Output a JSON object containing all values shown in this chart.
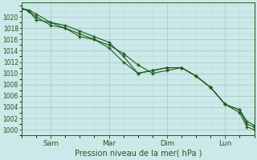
{
  "title": "Pression niveau de la mer( hPa )",
  "bg_color": "#cce8e8",
  "grid_major_color": "#aacccc",
  "grid_minor_color": "#bbdddd",
  "line_color": "#1a5c1a",
  "ylim": [
    999,
    1022.5
  ],
  "yticks": [
    1000,
    1002,
    1004,
    1006,
    1008,
    1010,
    1012,
    1014,
    1016,
    1018,
    1020
  ],
  "xtick_labels": [
    "Sam",
    "Mar",
    "Dim",
    "Lun"
  ],
  "xtick_positions": [
    1,
    3,
    5,
    7
  ],
  "xlim": [
    0,
    8
  ],
  "line1_x": [
    0.0,
    0.25,
    0.5,
    1.0,
    1.5,
    2.0,
    2.5,
    3.0,
    3.5,
    4.0,
    4.5,
    5.0,
    5.5,
    6.0,
    6.5,
    7.0,
    7.5,
    7.75,
    8.0
  ],
  "line1_y": [
    1021.5,
    1021.2,
    1020.5,
    1019.0,
    1018.5,
    1017.5,
    1016.5,
    1015.5,
    1013.0,
    1010.0,
    1010.5,
    1011.0,
    1011.0,
    1009.5,
    1007.5,
    1004.5,
    1003.5,
    1001.0,
    1000.5
  ],
  "line2_x": [
    0.0,
    0.25,
    0.5,
    1.0,
    1.5,
    2.0,
    2.5,
    3.0,
    3.5,
    4.0,
    4.5,
    5.0,
    5.5,
    6.0,
    6.5,
    7.0,
    7.5,
    7.75,
    8.0
  ],
  "line2_y": [
    1021.5,
    1021.0,
    1020.0,
    1018.5,
    1018.0,
    1016.5,
    1016.0,
    1014.5,
    1012.0,
    1010.0,
    1010.5,
    1011.0,
    1011.0,
    1009.5,
    1007.5,
    1004.5,
    1003.0,
    1000.5,
    1000.0
  ],
  "line3_x": [
    0.0,
    0.25,
    0.5,
    1.0,
    1.5,
    2.0,
    2.5,
    3.0,
    3.5,
    4.0,
    4.5,
    5.0,
    5.5,
    6.0,
    6.5,
    7.0,
    7.5,
    7.75,
    8.0
  ],
  "line3_y": [
    1021.5,
    1021.0,
    1019.5,
    1019.0,
    1018.0,
    1017.0,
    1016.0,
    1015.0,
    1013.5,
    1011.5,
    1010.0,
    1010.5,
    1011.0,
    1009.5,
    1007.5,
    1004.5,
    1003.5,
    1001.5,
    1000.8
  ]
}
